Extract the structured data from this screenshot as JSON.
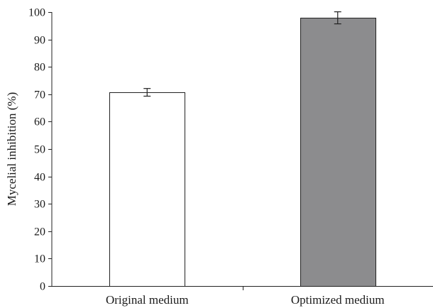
{
  "chart_data": {
    "type": "bar",
    "title": "",
    "xlabel": "",
    "ylabel": "Mycelial inhibition (%)",
    "ylim": [
      0,
      100
    ],
    "yticks": [
      0,
      10,
      20,
      30,
      40,
      50,
      60,
      70,
      80,
      90,
      100
    ],
    "categories": [
      "Original medium",
      "Optimized medium"
    ],
    "values": [
      70.7,
      97.9
    ],
    "errors": [
      1.4,
      2.2
    ],
    "colors": [
      "#ffffff",
      "#8c8c8e"
    ],
    "grid": false,
    "legend": "none"
  }
}
